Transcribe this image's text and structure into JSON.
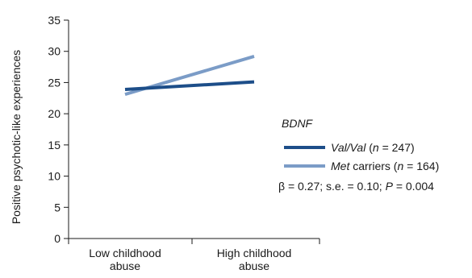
{
  "chart_data": {
    "type": "line",
    "categories": [
      "Low childhood abuse",
      "High childhood abuse"
    ],
    "category_label_lines": [
      [
        "Low childhood",
        "abuse"
      ],
      [
        "High childhood",
        "abuse"
      ]
    ],
    "ylabel": "Positive psychotic-like experiences",
    "ylim": [
      0,
      35
    ],
    "yticks": [
      0,
      5,
      10,
      15,
      20,
      25,
      30,
      35
    ],
    "grid": false,
    "legend_placement": "right",
    "legend_title": "BDNF",
    "series": [
      {
        "name": "Val/Val (n = 247)",
        "name_parts": {
          "group": "Val/Val",
          "open": " (",
          "n": "n",
          "eq": " = 247)"
        },
        "values": [
          23.9,
          25.1
        ],
        "color": "#1d4e89"
      },
      {
        "name": "Met carriers (n = 164)",
        "name_parts": {
          "group": "Met",
          "rest": " carriers (",
          "n": "n",
          "eq": " = 164)"
        },
        "values": [
          23.1,
          29.2
        ],
        "color": "#7b9cc7"
      }
    ],
    "annotation": "β = 0.27; s.e. = 0.10; P = 0.004",
    "annotation_parts": {
      "pre": "β = 0.27; s.e. = 0.10; ",
      "p": "P",
      "post": " = 0.004"
    }
  }
}
